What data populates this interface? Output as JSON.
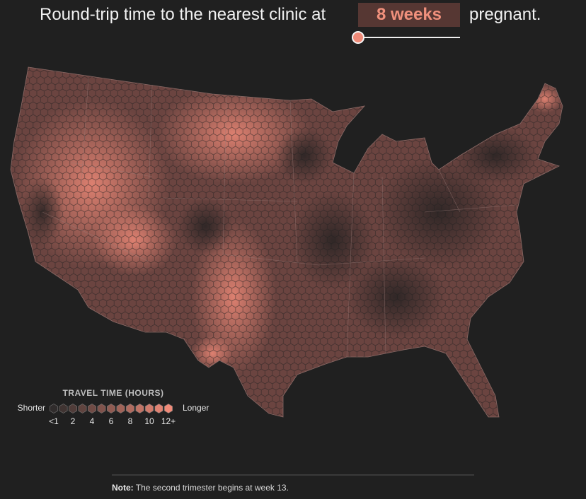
{
  "header": {
    "title_before": "Round-trip time to the nearest clinic at",
    "selector_value": "8 weeks",
    "title_after": "pregnant."
  },
  "legend": {
    "title": "TRAVEL TIME (HOURS)",
    "low_label": "Shorter",
    "high_label": "Longer",
    "ticks": [
      "<1",
      "2",
      "4",
      "6",
      "8",
      "10",
      "12+"
    ]
  },
  "note": {
    "label": "Note:",
    "text": "The second trimester begins at week 13."
  }
}
